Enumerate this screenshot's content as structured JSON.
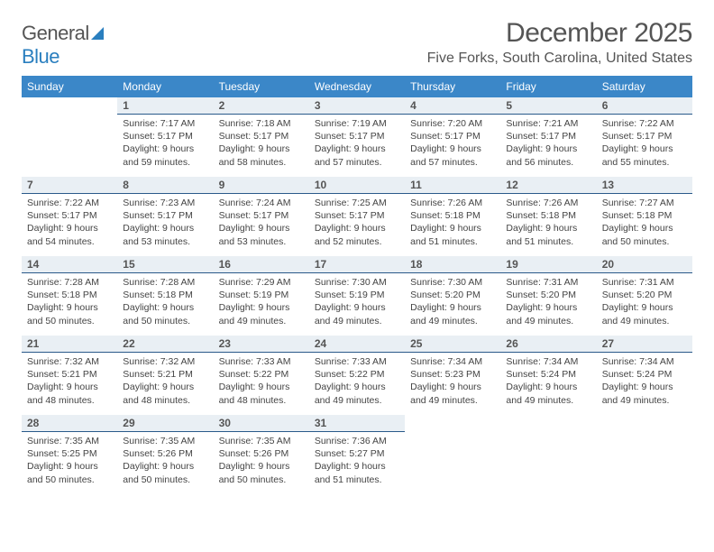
{
  "brand": {
    "word1": "General",
    "word2": "Blue"
  },
  "title": "December 2025",
  "subtitle": "Five Forks, South Carolina, United States",
  "colors": {
    "header_bg": "#3b87c8",
    "header_text": "#ffffff",
    "daynum_bg": "#e9eff4",
    "daynum_border": "#2a5a8a",
    "body_text": "#444444",
    "brand_blue": "#2a7fbf"
  },
  "day_headers": [
    "Sunday",
    "Monday",
    "Tuesday",
    "Wednesday",
    "Thursday",
    "Friday",
    "Saturday"
  ],
  "weeks": [
    [
      {
        "n": "",
        "sr": "",
        "ss": "",
        "dl": ""
      },
      {
        "n": "1",
        "sr": "Sunrise: 7:17 AM",
        "ss": "Sunset: 5:17 PM",
        "dl": "Daylight: 9 hours and 59 minutes."
      },
      {
        "n": "2",
        "sr": "Sunrise: 7:18 AM",
        "ss": "Sunset: 5:17 PM",
        "dl": "Daylight: 9 hours and 58 minutes."
      },
      {
        "n": "3",
        "sr": "Sunrise: 7:19 AM",
        "ss": "Sunset: 5:17 PM",
        "dl": "Daylight: 9 hours and 57 minutes."
      },
      {
        "n": "4",
        "sr": "Sunrise: 7:20 AM",
        "ss": "Sunset: 5:17 PM",
        "dl": "Daylight: 9 hours and 57 minutes."
      },
      {
        "n": "5",
        "sr": "Sunrise: 7:21 AM",
        "ss": "Sunset: 5:17 PM",
        "dl": "Daylight: 9 hours and 56 minutes."
      },
      {
        "n": "6",
        "sr": "Sunrise: 7:22 AM",
        "ss": "Sunset: 5:17 PM",
        "dl": "Daylight: 9 hours and 55 minutes."
      }
    ],
    [
      {
        "n": "7",
        "sr": "Sunrise: 7:22 AM",
        "ss": "Sunset: 5:17 PM",
        "dl": "Daylight: 9 hours and 54 minutes."
      },
      {
        "n": "8",
        "sr": "Sunrise: 7:23 AM",
        "ss": "Sunset: 5:17 PM",
        "dl": "Daylight: 9 hours and 53 minutes."
      },
      {
        "n": "9",
        "sr": "Sunrise: 7:24 AM",
        "ss": "Sunset: 5:17 PM",
        "dl": "Daylight: 9 hours and 53 minutes."
      },
      {
        "n": "10",
        "sr": "Sunrise: 7:25 AM",
        "ss": "Sunset: 5:17 PM",
        "dl": "Daylight: 9 hours and 52 minutes."
      },
      {
        "n": "11",
        "sr": "Sunrise: 7:26 AM",
        "ss": "Sunset: 5:18 PM",
        "dl": "Daylight: 9 hours and 51 minutes."
      },
      {
        "n": "12",
        "sr": "Sunrise: 7:26 AM",
        "ss": "Sunset: 5:18 PM",
        "dl": "Daylight: 9 hours and 51 minutes."
      },
      {
        "n": "13",
        "sr": "Sunrise: 7:27 AM",
        "ss": "Sunset: 5:18 PM",
        "dl": "Daylight: 9 hours and 50 minutes."
      }
    ],
    [
      {
        "n": "14",
        "sr": "Sunrise: 7:28 AM",
        "ss": "Sunset: 5:18 PM",
        "dl": "Daylight: 9 hours and 50 minutes."
      },
      {
        "n": "15",
        "sr": "Sunrise: 7:28 AM",
        "ss": "Sunset: 5:18 PM",
        "dl": "Daylight: 9 hours and 50 minutes."
      },
      {
        "n": "16",
        "sr": "Sunrise: 7:29 AM",
        "ss": "Sunset: 5:19 PM",
        "dl": "Daylight: 9 hours and 49 minutes."
      },
      {
        "n": "17",
        "sr": "Sunrise: 7:30 AM",
        "ss": "Sunset: 5:19 PM",
        "dl": "Daylight: 9 hours and 49 minutes."
      },
      {
        "n": "18",
        "sr": "Sunrise: 7:30 AM",
        "ss": "Sunset: 5:20 PM",
        "dl": "Daylight: 9 hours and 49 minutes."
      },
      {
        "n": "19",
        "sr": "Sunrise: 7:31 AM",
        "ss": "Sunset: 5:20 PM",
        "dl": "Daylight: 9 hours and 49 minutes."
      },
      {
        "n": "20",
        "sr": "Sunrise: 7:31 AM",
        "ss": "Sunset: 5:20 PM",
        "dl": "Daylight: 9 hours and 49 minutes."
      }
    ],
    [
      {
        "n": "21",
        "sr": "Sunrise: 7:32 AM",
        "ss": "Sunset: 5:21 PM",
        "dl": "Daylight: 9 hours and 48 minutes."
      },
      {
        "n": "22",
        "sr": "Sunrise: 7:32 AM",
        "ss": "Sunset: 5:21 PM",
        "dl": "Daylight: 9 hours and 48 minutes."
      },
      {
        "n": "23",
        "sr": "Sunrise: 7:33 AM",
        "ss": "Sunset: 5:22 PM",
        "dl": "Daylight: 9 hours and 48 minutes."
      },
      {
        "n": "24",
        "sr": "Sunrise: 7:33 AM",
        "ss": "Sunset: 5:22 PM",
        "dl": "Daylight: 9 hours and 49 minutes."
      },
      {
        "n": "25",
        "sr": "Sunrise: 7:34 AM",
        "ss": "Sunset: 5:23 PM",
        "dl": "Daylight: 9 hours and 49 minutes."
      },
      {
        "n": "26",
        "sr": "Sunrise: 7:34 AM",
        "ss": "Sunset: 5:24 PM",
        "dl": "Daylight: 9 hours and 49 minutes."
      },
      {
        "n": "27",
        "sr": "Sunrise: 7:34 AM",
        "ss": "Sunset: 5:24 PM",
        "dl": "Daylight: 9 hours and 49 minutes."
      }
    ],
    [
      {
        "n": "28",
        "sr": "Sunrise: 7:35 AM",
        "ss": "Sunset: 5:25 PM",
        "dl": "Daylight: 9 hours and 50 minutes."
      },
      {
        "n": "29",
        "sr": "Sunrise: 7:35 AM",
        "ss": "Sunset: 5:26 PM",
        "dl": "Daylight: 9 hours and 50 minutes."
      },
      {
        "n": "30",
        "sr": "Sunrise: 7:35 AM",
        "ss": "Sunset: 5:26 PM",
        "dl": "Daylight: 9 hours and 50 minutes."
      },
      {
        "n": "31",
        "sr": "Sunrise: 7:36 AM",
        "ss": "Sunset: 5:27 PM",
        "dl": "Daylight: 9 hours and 51 minutes."
      },
      {
        "n": "",
        "sr": "",
        "ss": "",
        "dl": ""
      },
      {
        "n": "",
        "sr": "",
        "ss": "",
        "dl": ""
      },
      {
        "n": "",
        "sr": "",
        "ss": "",
        "dl": ""
      }
    ]
  ]
}
